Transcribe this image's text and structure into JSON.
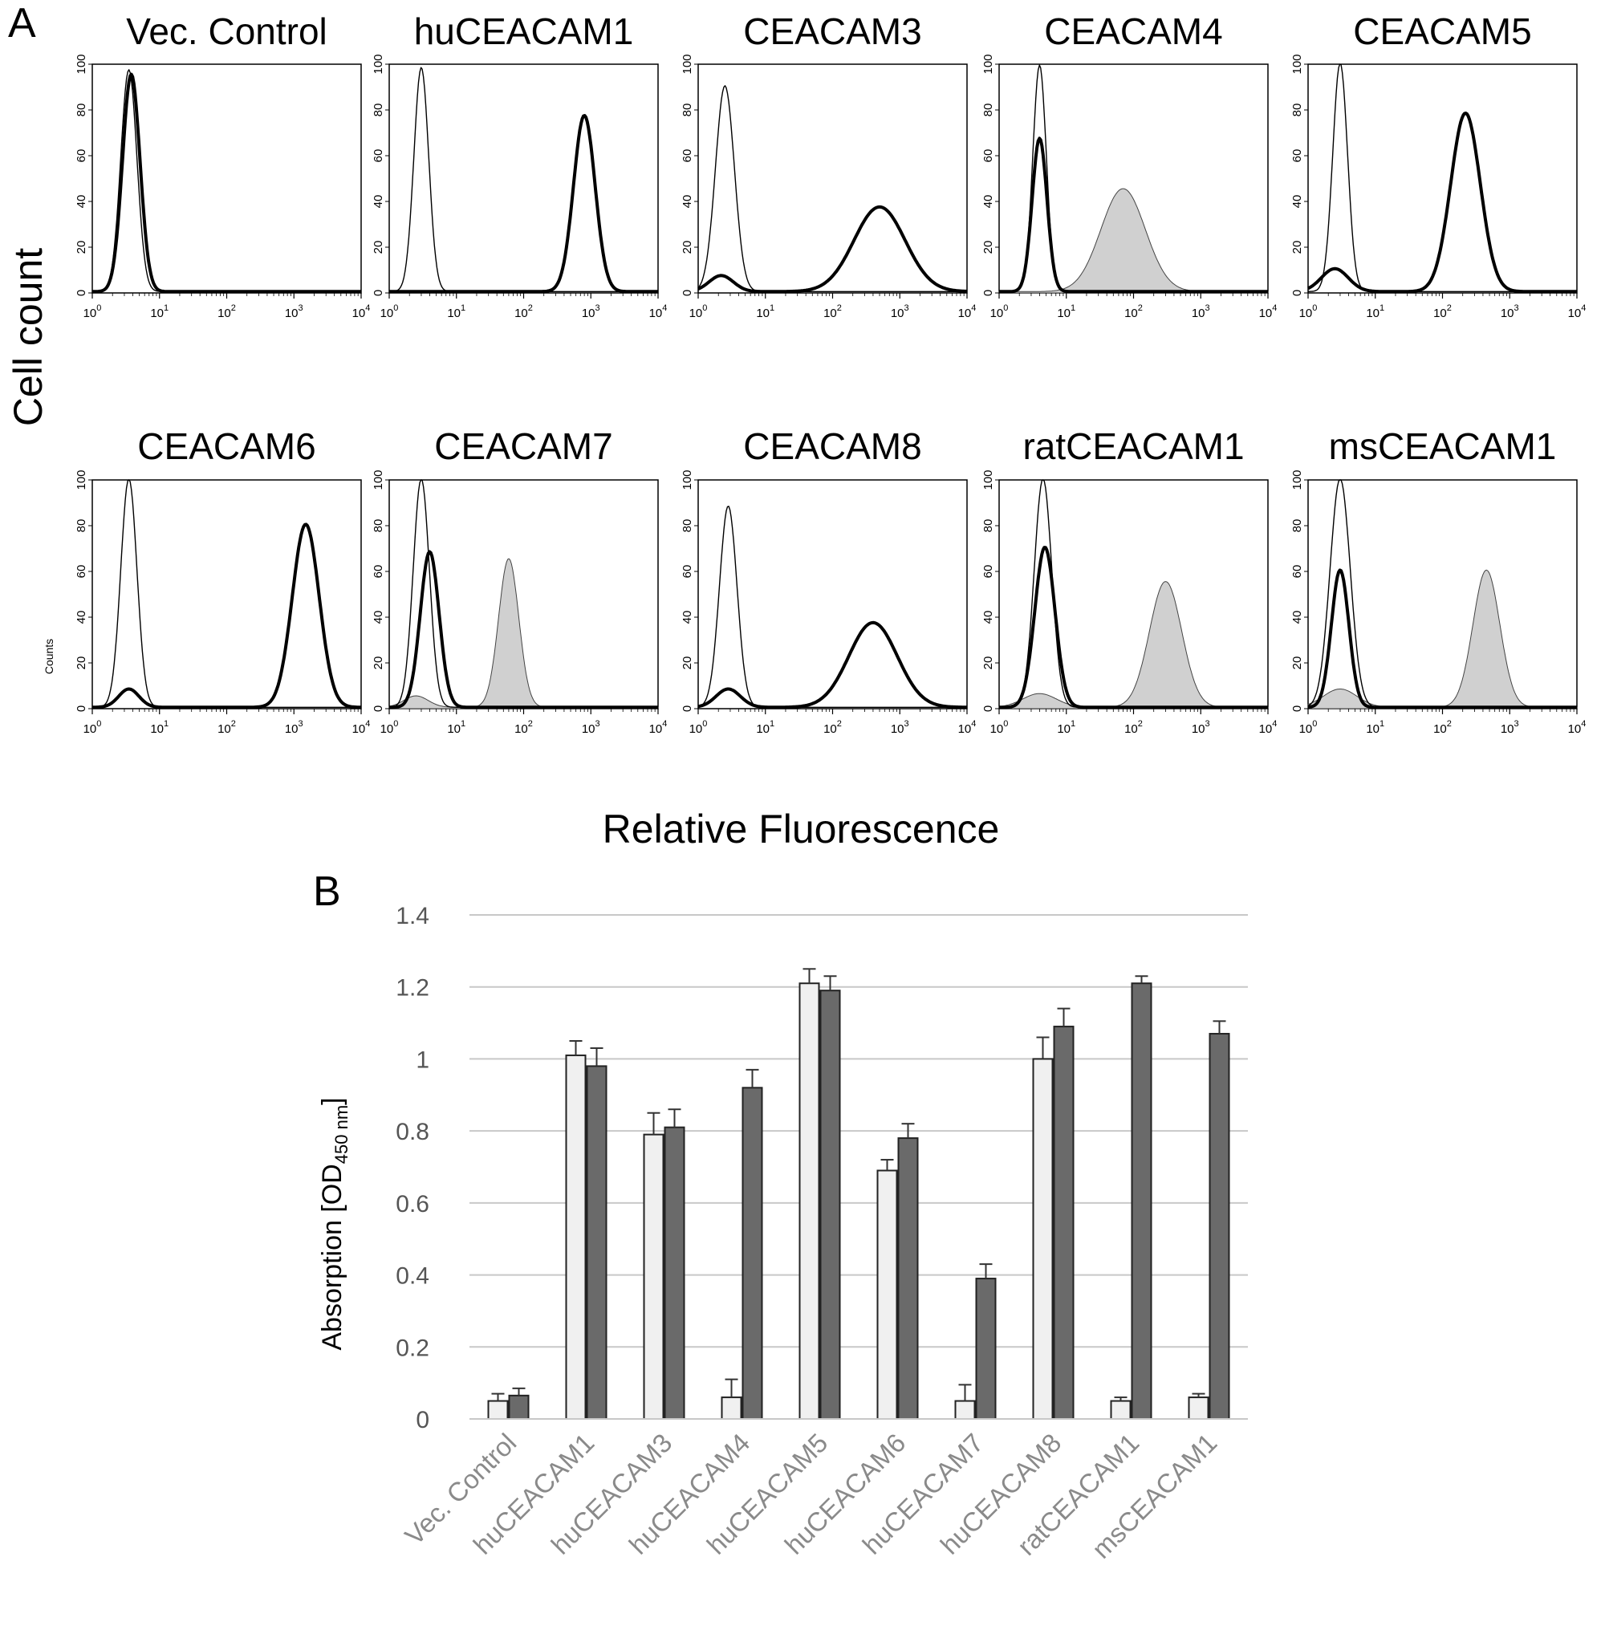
{
  "panel_a": {
    "label": "A",
    "ylabel": "Cell count",
    "xlabel": "Relative Fluorescence",
    "x_tick_labels": [
      "10",
      "10",
      "10",
      "10",
      "10"
    ],
    "x_tick_exponents": [
      "0",
      "1",
      "2",
      "3",
      "4"
    ],
    "y_tick_labels": [
      "0",
      "20",
      "40",
      "60",
      "80",
      "100"
    ],
    "inner_axis_label": "Counts"
  },
  "panel_b": {
    "label": "B",
    "ylabel_main": "Absorption [OD",
    "ylabel_sub": "450 nm",
    "ylabel_close": "]"
  },
  "chart_data": [
    {
      "type": "area",
      "panel": "A",
      "x_scale": "log",
      "xlim": [
        1,
        10000
      ],
      "ylim": [
        0,
        100
      ],
      "curve_styles": [
        "thin line",
        "bold line",
        "gray filled"
      ],
      "panels": [
        {
          "title": "Vec. Control",
          "curves": [
            {
              "style": "thin",
              "peaks": [
                [
                  3.5,
                  97,
                  0.12
                ]
              ]
            },
            {
              "style": "bold",
              "peaks": [
                [
                  3.8,
                  95,
                  0.13
                ]
              ]
            }
          ]
        },
        {
          "title": "huCEACAM1",
          "curves": [
            {
              "style": "thin",
              "peaks": [
                [
                  3.0,
                  98,
                  0.11
                ]
              ]
            },
            {
              "style": "bold",
              "peaks": [
                [
                  800,
                  77,
                  0.16
                ]
              ]
            }
          ]
        },
        {
          "title": "CEACAM3",
          "curves": [
            {
              "style": "thin",
              "peaks": [
                [
                  2.5,
                  90,
                  0.14
                ]
              ]
            },
            {
              "style": "bold",
              "peaks": [
                [
                  2.2,
                  7,
                  0.18
                ],
                [
                  500,
                  37,
                  0.38
                ]
              ]
            }
          ]
        },
        {
          "title": "CEACAM4",
          "curves": [
            {
              "style": "thin",
              "peaks": [
                [
                  4.0,
                  99,
                  0.1
                ]
              ]
            },
            {
              "style": "bold",
              "peaks": [
                [
                  4.0,
                  67,
                  0.11
                ]
              ]
            },
            {
              "style": "filled",
              "peaks": [
                [
                  70,
                  45,
                  0.33
                ]
              ]
            }
          ]
        },
        {
          "title": "CEACAM5",
          "curves": [
            {
              "style": "thin",
              "peaks": [
                [
                  3.0,
                  100,
                  0.11
                ]
              ]
            },
            {
              "style": "bold",
              "peaks": [
                [
                  2.5,
                  10,
                  0.2
                ],
                [
                  220,
                  78,
                  0.22
                ]
              ]
            }
          ]
        },
        {
          "title": "CEACAM6",
          "curves": [
            {
              "style": "thin",
              "peaks": [
                [
                  3.5,
                  100,
                  0.12
                ]
              ]
            },
            {
              "style": "bold",
              "peaks": [
                [
                  3.5,
                  8,
                  0.15
                ],
                [
                  1500,
                  80,
                  0.2
                ]
              ]
            }
          ]
        },
        {
          "title": "CEACAM7",
          "curves": [
            {
              "style": "thin",
              "peaks": [
                [
                  3.0,
                  100,
                  0.12
                ]
              ]
            },
            {
              "style": "bold",
              "peaks": [
                [
                  4.0,
                  68,
                  0.14
                ]
              ]
            },
            {
              "style": "filled",
              "peaks": [
                [
                  2.5,
                  5,
                  0.18
                ],
                [
                  60,
                  65,
                  0.15
                ]
              ]
            }
          ]
        },
        {
          "title": "CEACAM8",
          "curves": [
            {
              "style": "thin",
              "peaks": [
                [
                  2.8,
                  88,
                  0.13
                ]
              ]
            },
            {
              "style": "bold",
              "peaks": [
                [
                  2.8,
                  8,
                  0.18
                ],
                [
                  400,
                  37,
                  0.36
                ]
              ]
            }
          ]
        },
        {
          "title": "ratCEACAM1",
          "curves": [
            {
              "style": "thin",
              "peaks": [
                [
                  4.5,
                  100,
                  0.13
                ]
              ]
            },
            {
              "style": "bold",
              "peaks": [
                [
                  4.8,
                  70,
                  0.15
                ]
              ]
            },
            {
              "style": "filled",
              "peaks": [
                [
                  4.0,
                  6,
                  0.25
                ],
                [
                  300,
                  55,
                  0.24
                ]
              ]
            }
          ]
        },
        {
          "title": "msCEACAM1",
          "curves": [
            {
              "style": "thin",
              "peaks": [
                [
                  3.0,
                  100,
                  0.15
                ]
              ]
            },
            {
              "style": "bold",
              "peaks": [
                [
                  3.0,
                  60,
                  0.13
                ]
              ]
            },
            {
              "style": "filled",
              "peaks": [
                [
                  3.0,
                  8,
                  0.25
                ],
                [
                  450,
                  60,
                  0.2
                ]
              ]
            }
          ]
        }
      ]
    },
    {
      "type": "bar",
      "panel": "B",
      "categories": [
        "Vec. Control",
        "huCEACAM1",
        "huCEACAM3",
        "huCEACAM4",
        "huCEACAM5",
        "huCEACAM6",
        "huCEACAM7",
        "huCEACAM8",
        "ratCEACAM1",
        "msCEACAM1"
      ],
      "series": [
        {
          "values": [
            0.05,
            1.01,
            0.79,
            0.06,
            1.21,
            0.69,
            0.05,
            1.0,
            0.05,
            0.06
          ],
          "errors": [
            0.02,
            0.04,
            0.06,
            0.05,
            0.04,
            0.03,
            0.045,
            0.06,
            0.01,
            0.01
          ],
          "color": "#f0f0f0"
        },
        {
          "values": [
            0.065,
            0.98,
            0.81,
            0.92,
            1.19,
            0.78,
            0.39,
            1.09,
            1.21,
            1.07
          ],
          "errors": [
            0.02,
            0.05,
            0.05,
            0.05,
            0.04,
            0.04,
            0.04,
            0.05,
            0.02,
            0.035
          ],
          "color": "#6a6a6a"
        }
      ],
      "ylim": [
        0,
        1.4
      ],
      "y_ticks": [
        "0",
        "0.2",
        "0.4",
        "0.6",
        "0.8",
        "1",
        "1.2",
        "1.4"
      ],
      "grid": true
    }
  ]
}
